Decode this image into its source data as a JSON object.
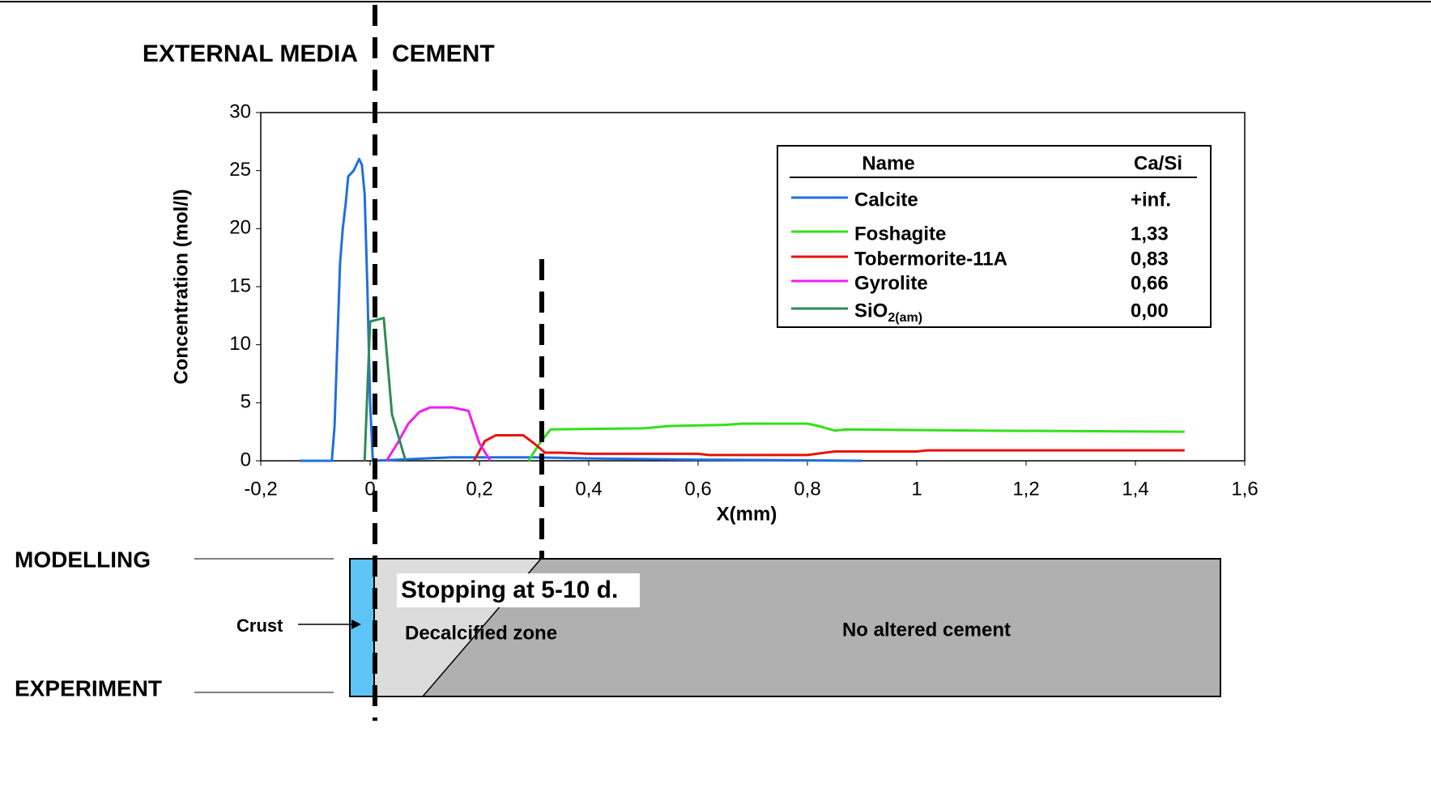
{
  "chart_data": {
    "type": "line",
    "top_labels": [
      "EXTERNAL MEDIA",
      "CEMENT"
    ],
    "y_label": "Concentration (mol/l)",
    "x_label": "X(mm)",
    "xlim": [
      -0.2,
      1.6
    ],
    "xticks": [
      {
        "value": -0.2,
        "label": "-0,2"
      },
      0,
      {
        "value": 0.2,
        "label": "0,2"
      },
      {
        "value": 0.4,
        "label": "0,4"
      },
      {
        "value": 0.6,
        "label": "0,6"
      },
      {
        "value": 0.8,
        "label": "0,8"
      },
      1,
      {
        "value": 1.2,
        "label": "1,2"
      },
      {
        "value": 1.4,
        "label": "1,4"
      },
      {
        "value": 1.6,
        "label": "1,6"
      }
    ],
    "ylim": [
      0,
      30
    ],
    "yticks": [
      0,
      5,
      10,
      15,
      20,
      25,
      30
    ],
    "legend": {
      "name_header": "Name",
      "ratio_header": "Ca/Si",
      "position": "upper-right"
    },
    "series": [
      {
        "name": "Calcite",
        "ratio": "+inf.",
        "color": "#1f6fe0",
        "x": [
          -0.13,
          -0.07,
          -0.065,
          -0.06,
          -0.055,
          -0.05,
          -0.045,
          -0.04,
          -0.03,
          -0.02,
          -0.015,
          -0.01,
          -0.005,
          0,
          0.005,
          0.1,
          0.15,
          0.2,
          0.3,
          0.4,
          0.6,
          0.9
        ],
        "values": [
          0,
          0,
          3,
          10,
          17,
          20,
          22,
          24.5,
          25,
          26,
          25.5,
          23,
          15,
          5,
          0,
          0.2,
          0.3,
          0.3,
          0.3,
          0.2,
          0.1,
          0
        ]
      },
      {
        "name": "Foshagite",
        "ratio": "1,33",
        "color": "#33e01c",
        "x": [
          0.29,
          0.31,
          0.33,
          0.5,
          0.55,
          0.65,
          0.68,
          0.8,
          0.82,
          0.85,
          0.87,
          1.12,
          1.49
        ],
        "values": [
          0,
          1.5,
          2.7,
          2.8,
          3,
          3.1,
          3.2,
          3.2,
          3.0,
          2.6,
          2.7,
          2.6,
          2.5
        ]
      },
      {
        "name": "Tobermorite-11A",
        "ratio": "0,83",
        "color": "#e8120c",
        "x": [
          0.19,
          0.21,
          0.23,
          0.28,
          0.3,
          0.32,
          0.35,
          0.4,
          0.6,
          0.62,
          0.8,
          0.85,
          1,
          1.02,
          1.49
        ],
        "values": [
          0,
          1.7,
          2.2,
          2.2,
          1.5,
          0.7,
          0.7,
          0.6,
          0.6,
          0.5,
          0.5,
          0.8,
          0.8,
          0.9,
          0.9
        ]
      },
      {
        "name": "Gyrolite",
        "ratio": "0,66",
        "color": "#f01ff0",
        "x": [
          0.03,
          0.05,
          0.07,
          0.09,
          0.11,
          0.15,
          0.18,
          0.2,
          0.22
        ],
        "values": [
          0,
          1.5,
          3.2,
          4.2,
          4.6,
          4.6,
          4.3,
          1.5,
          0
        ]
      },
      {
        "name": "SiO",
        "name_subscript": "2(am)",
        "ratio": "0,00",
        "color": "#2e8b57",
        "x": [
          -0.01,
          0,
          0.025,
          0.04,
          0.065
        ],
        "values": [
          0,
          12,
          12.3,
          4,
          0
        ]
      }
    ]
  },
  "diagram": {
    "modelling": "MODELLING",
    "experiment": "EXPERIMENT",
    "crust": "Crust",
    "stopping": "Stopping at 5-10 d.",
    "decalcified": "Decalcified zone",
    "unaltered": "No altered cement"
  }
}
